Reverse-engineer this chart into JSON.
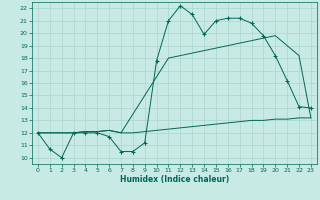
{
  "xlabel": "Humidex (Indice chaleur)",
  "bg_color": "#c8eae4",
  "grid_color": "#aad4cc",
  "line_color": "#006655",
  "xlim": [
    -0.5,
    23.5
  ],
  "ylim": [
    9.5,
    22.5
  ],
  "yticks": [
    10,
    11,
    12,
    13,
    14,
    15,
    16,
    17,
    18,
    19,
    20,
    21,
    22
  ],
  "xticks": [
    0,
    1,
    2,
    3,
    4,
    5,
    6,
    7,
    8,
    9,
    10,
    11,
    12,
    13,
    14,
    15,
    16,
    17,
    18,
    19,
    20,
    21,
    22,
    23
  ],
  "line1_x": [
    0,
    1,
    2,
    3,
    4,
    5,
    6,
    7,
    8,
    9,
    10,
    11,
    12,
    13,
    14,
    15,
    16,
    17,
    18,
    19,
    20,
    21,
    22,
    23
  ],
  "line1_y": [
    12.0,
    10.7,
    10.0,
    12.0,
    12.0,
    12.0,
    11.7,
    10.5,
    10.5,
    11.2,
    17.8,
    21.0,
    22.2,
    21.5,
    19.9,
    21.0,
    21.2,
    21.2,
    20.8,
    19.8,
    18.2,
    16.2,
    14.1,
    14.0
  ],
  "line2_x": [
    0,
    3,
    4,
    5,
    6,
    7,
    8,
    9,
    10,
    11,
    20,
    22,
    23
  ],
  "line2_y": [
    12.0,
    12.0,
    12.1,
    12.1,
    12.2,
    12.0,
    13.5,
    15.0,
    16.5,
    18.0,
    19.8,
    18.2,
    13.2
  ],
  "line3_x": [
    0,
    3,
    4,
    5,
    6,
    7,
    8,
    9,
    10,
    11,
    12,
    13,
    14,
    15,
    16,
    17,
    18,
    19,
    20,
    21,
    22,
    23
  ],
  "line3_y": [
    12.0,
    12.0,
    12.1,
    12.1,
    12.2,
    12.0,
    12.0,
    12.1,
    12.2,
    12.3,
    12.4,
    12.5,
    12.6,
    12.7,
    12.8,
    12.9,
    13.0,
    13.0,
    13.1,
    13.1,
    13.2,
    13.2
  ]
}
